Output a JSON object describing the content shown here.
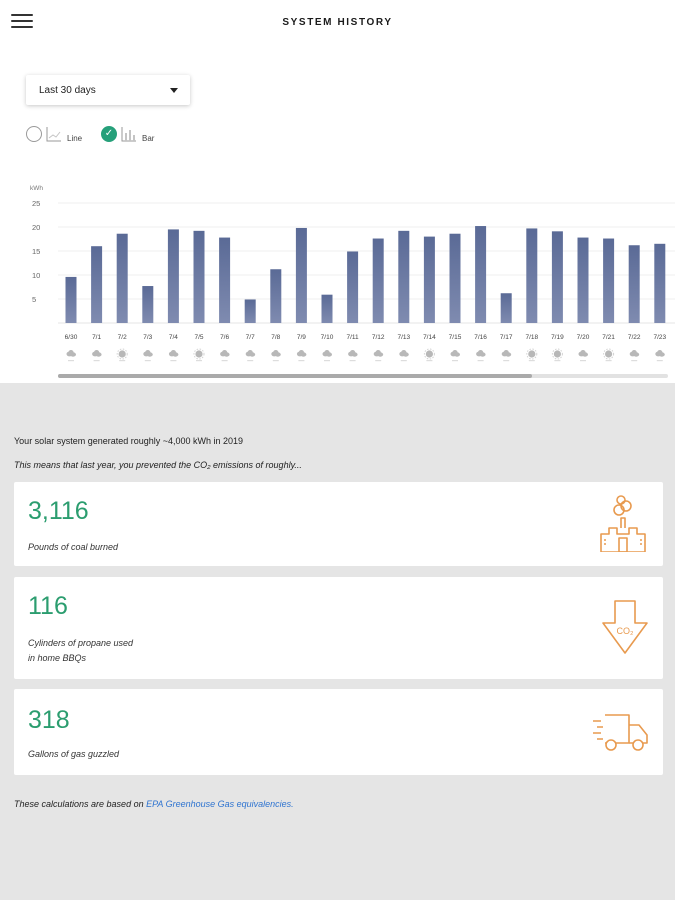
{
  "header": {
    "title": "SYSTEM HISTORY"
  },
  "controls": {
    "range_selected": "Last 30 days",
    "view_options": [
      {
        "label": "Line",
        "selected": false
      },
      {
        "label": "Bar",
        "selected": true
      }
    ]
  },
  "chart_data": {
    "type": "bar",
    "ylabel": "kWh",
    "ylim": [
      0,
      25
    ],
    "yticks": [
      "25",
      "20",
      "15",
      "10",
      "5"
    ],
    "grid": true,
    "categories": [
      "6/30",
      "7/1",
      "7/2",
      "7/3",
      "7/4",
      "7/5",
      "7/6",
      "7/7",
      "7/8",
      "7/9",
      "7/10",
      "7/11",
      "7/12",
      "7/13",
      "7/14",
      "7/15",
      "7/16",
      "7/17",
      "7/18",
      "7/19",
      "7/20",
      "7/21",
      "7/22",
      "7/23"
    ],
    "values": [
      9.6,
      16,
      18.6,
      7.7,
      19.5,
      19.2,
      17.8,
      4.9,
      11.2,
      19.8,
      5.9,
      14.9,
      17.6,
      19.2,
      18,
      18.6,
      20.2,
      6.2,
      19.7,
      19.1,
      17.8,
      17.6,
      16.2,
      16.5
    ],
    "weather_icons": [
      "cloudy",
      "cloudy",
      "sunny",
      "cloudy",
      "cloudy",
      "sunny",
      "cloudy",
      "cloudy",
      "cloudy",
      "cloudy",
      "cloudy",
      "cloudy",
      "cloudy",
      "cloudy",
      "sunny",
      "cloudy",
      "cloudy",
      "cloudy",
      "sunny",
      "sunny",
      "cloudy",
      "sunny",
      "cloudy",
      "cloudy"
    ],
    "bar_color": "#5a6a96"
  },
  "impact": {
    "summary": "Your solar system generated roughly ~4,000 kWh in 2019",
    "intro": "This means that last year, you prevented the CO₂ emissions of roughly...",
    "cards": [
      {
        "value": "3,116",
        "desc_line1": "Pounds of coal burned",
        "desc_line2": "",
        "icon": "coal-plant-icon"
      },
      {
        "value": "116",
        "desc_line1": "Cylinders of propane used",
        "desc_line2": "in home BBQs",
        "icon": "co2-arrow-icon"
      },
      {
        "value": "318",
        "desc_line1": "Gallons of gas guzzled",
        "desc_line2": "",
        "icon": "moving-truck-icon"
      }
    ],
    "footnote_prefix": "These calculations are based on ",
    "footnote_link": "EPA Greenhouse Gas equivalencies.",
    "accent_color": "#2b9d6f",
    "icon_color": "#e89a4f",
    "link_color": "#2f74d0"
  }
}
